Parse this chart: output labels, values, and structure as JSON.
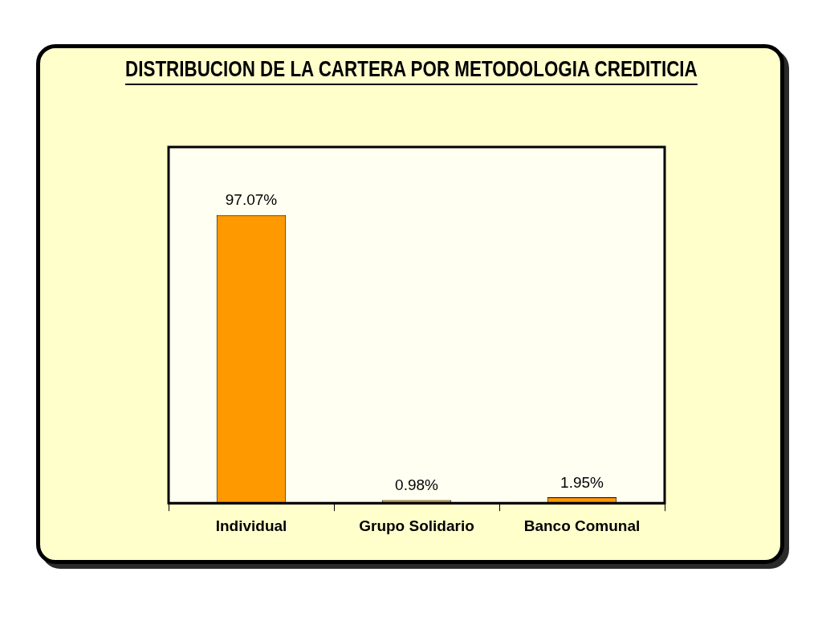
{
  "chart_data": {
    "type": "bar",
    "title": "DISTRIBUCION DE LA CARTERA POR METODOLOGIA CREDITICIA",
    "categories": [
      "Individual",
      "Grupo Solidario",
      "Banco Comunal"
    ],
    "values": [
      97.07,
      0.98,
      1.95
    ],
    "value_labels": [
      "97.07%",
      "0.98%",
      "1.95%"
    ],
    "color": "#ff9900",
    "tick_labels": "x"
  }
}
